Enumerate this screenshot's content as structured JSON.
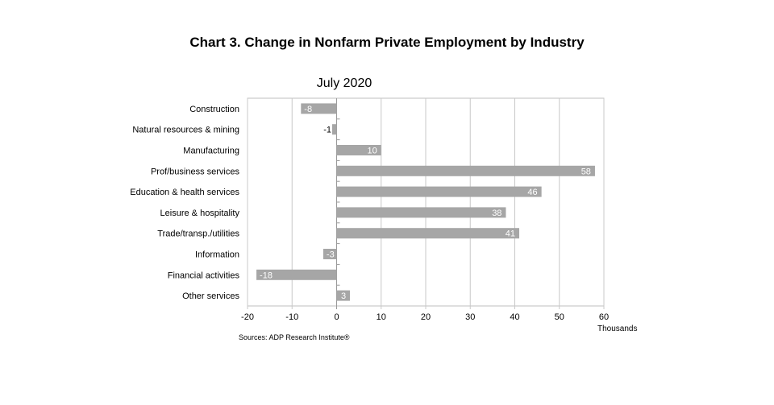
{
  "chart_data": {
    "type": "bar",
    "orientation": "horizontal",
    "title": "Chart 3. Change in Nonfarm Private Employment by Industry",
    "subtitle": "July 2020",
    "categories": [
      "Construction",
      "Natural resources & mining",
      "Manufacturing",
      "Prof/business services",
      "Education & health services",
      "Leisure & hospitality",
      "Trade/transp./utilities",
      "Information",
      "Financial activities",
      "Other services"
    ],
    "values": [
      -8,
      -1,
      10,
      58,
      46,
      38,
      41,
      -3,
      -18,
      3
    ],
    "xlim": [
      -20,
      60
    ],
    "xticks": [
      -20,
      -10,
      0,
      10,
      20,
      30,
      40,
      50,
      60
    ],
    "xlabel": "Thousands",
    "grid": true,
    "bar_color": "#a6a6a6",
    "source": "Sources: ADP Research Institute®"
  }
}
